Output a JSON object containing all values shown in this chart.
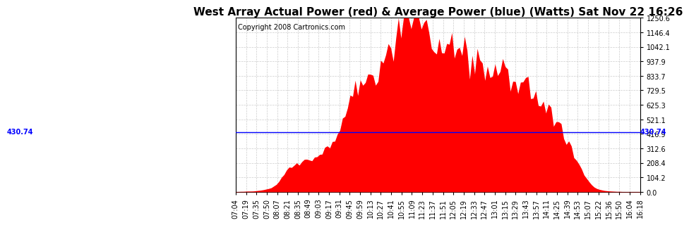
{
  "title": "West Array Actual Power (red) & Average Power (blue) (Watts) Sat Nov 22 16:26",
  "copyright": "Copyright 2008 Cartronics.com",
  "average_power": 430.74,
  "y_max": 1250.6,
  "y_min": 0.0,
  "y_ticks": [
    0.0,
    104.2,
    208.4,
    312.6,
    416.9,
    521.1,
    625.3,
    729.5,
    833.7,
    937.9,
    1042.1,
    1146.4,
    1250.6
  ],
  "x_labels": [
    "07:04",
    "07:19",
    "07:35",
    "07:50",
    "08:07",
    "08:21",
    "08:35",
    "08:49",
    "09:03",
    "09:17",
    "09:31",
    "09:45",
    "09:59",
    "10:13",
    "10:27",
    "10:41",
    "10:55",
    "11:09",
    "11:23",
    "11:37",
    "11:51",
    "12:05",
    "12:19",
    "12:33",
    "12:47",
    "13:01",
    "13:15",
    "13:29",
    "13:43",
    "13:57",
    "14:11",
    "14:25",
    "14:39",
    "14:53",
    "15:07",
    "15:22",
    "15:36",
    "15:50",
    "16:04",
    "16:18"
  ],
  "fill_color": "#FF0000",
  "line_color": "#0000FF",
  "background_color": "#FFFFFF",
  "grid_color": "#C0C0C0",
  "title_fontsize": 11,
  "copyright_fontsize": 7,
  "tick_fontsize": 7,
  "power_data": [
    2,
    2,
    3,
    3,
    4,
    5,
    5,
    6,
    8,
    10,
    12,
    15,
    20,
    25,
    30,
    40,
    55,
    75,
    100,
    130,
    155,
    170,
    180,
    190,
    200,
    210,
    215,
    220,
    225,
    230,
    240,
    250,
    260,
    270,
    280,
    295,
    310,
    330,
    355,
    385,
    420,
    460,
    510,
    560,
    610,
    660,
    700,
    730,
    750,
    760,
    780,
    800,
    820,
    840,
    855,
    870,
    880,
    900,
    920,
    940,
    960,
    990,
    1050,
    1100,
    1140,
    1180,
    1210,
    1230,
    1200,
    1180,
    1220,
    1230,
    1210,
    1180,
    1150,
    1120,
    1090,
    1070,
    1050,
    1040,
    1030,
    1020,
    1010,
    1000,
    990,
    980,
    970,
    960,
    950,
    940,
    930,
    920,
    910,
    900,
    895,
    890,
    885,
    880,
    875,
    870,
    865,
    860,
    855,
    850,
    845,
    840,
    835,
    830,
    820,
    810,
    800,
    790,
    780,
    770,
    760,
    750,
    735,
    720,
    700,
    680,
    660,
    640,
    615,
    590,
    560,
    530,
    500,
    470,
    440,
    405,
    370,
    335,
    300,
    265,
    230,
    195,
    160,
    125,
    95,
    70,
    50,
    35,
    25,
    18,
    13,
    10,
    8,
    6,
    5,
    4,
    3,
    3,
    2,
    2,
    2,
    2,
    2,
    2,
    2,
    2
  ]
}
